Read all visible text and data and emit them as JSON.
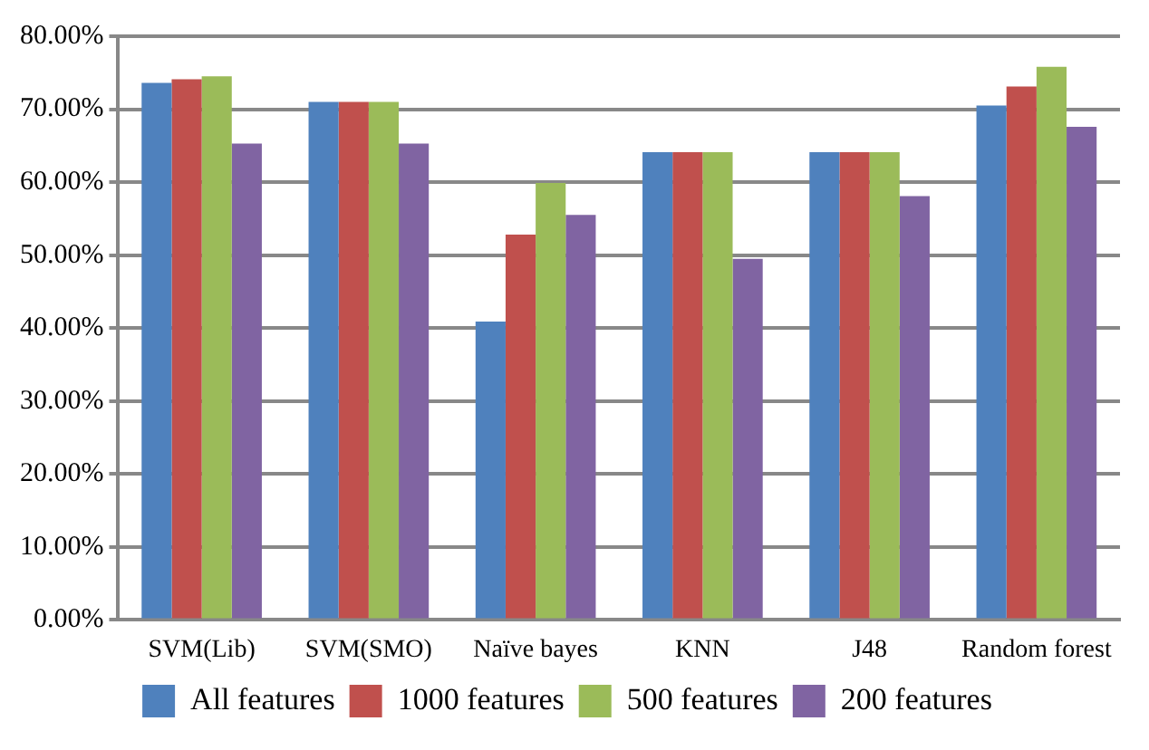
{
  "chart_data": {
    "type": "bar",
    "categories": [
      "SVM(Lib)",
      "SVM(SMO)",
      "Naïve bayes",
      "KNN",
      "J48",
      "Random forest"
    ],
    "series": [
      {
        "name": "All features",
        "color": "#4f81bd",
        "values": [
          73.6,
          71.0,
          40.9,
          64.1,
          64.1,
          70.5
        ]
      },
      {
        "name": "1000 features",
        "color": "#c0504d",
        "values": [
          74.1,
          71.0,
          52.8,
          64.1,
          64.1,
          73.1
        ]
      },
      {
        "name": "500 features",
        "color": "#9bbb59",
        "values": [
          74.5,
          71.0,
          59.9,
          64.1,
          64.1,
          75.8
        ]
      },
      {
        "name": "200 features",
        "color": "#8064a2",
        "values": [
          65.3,
          65.3,
          55.5,
          49.5,
          58.1,
          67.6
        ]
      }
    ],
    "ylim": [
      0,
      80
    ],
    "yticks": [
      {
        "value": 0,
        "label": "0.00%"
      },
      {
        "value": 10,
        "label": "10.00%"
      },
      {
        "value": 20,
        "label": "20.00%"
      },
      {
        "value": 30,
        "label": "30.00%"
      },
      {
        "value": 40,
        "label": "40.00%"
      },
      {
        "value": 50,
        "label": "50.00%"
      },
      {
        "value": 60,
        "label": "60.00%"
      },
      {
        "value": 70,
        "label": "70.00%"
      },
      {
        "value": 80,
        "label": "80.00%"
      }
    ],
    "grid": "y",
    "legend": "bottom"
  }
}
